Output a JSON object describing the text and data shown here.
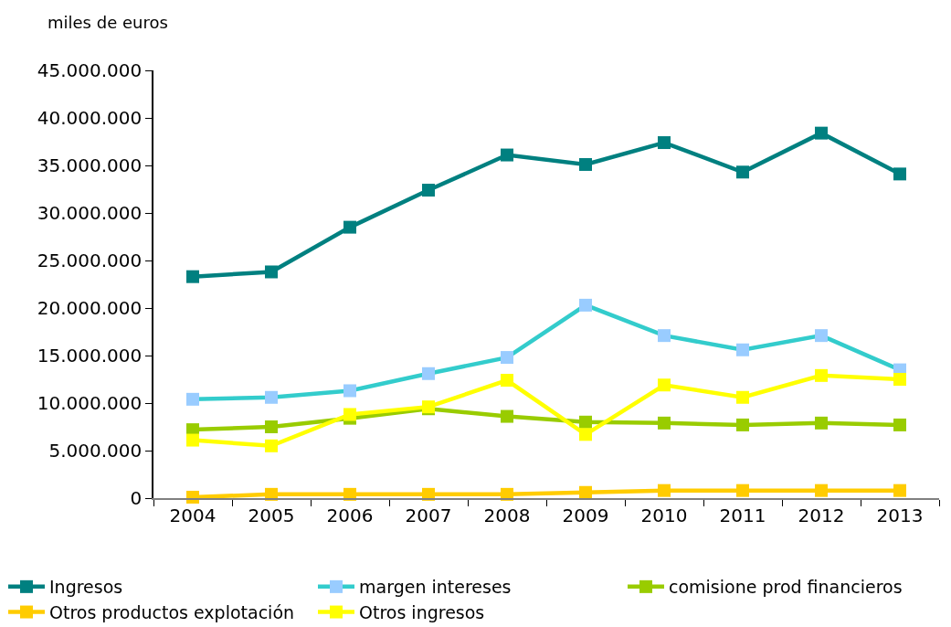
{
  "chart_data": {
    "type": "line",
    "ylabel": "miles de euros",
    "categories": [
      "2004",
      "2005",
      "2006",
      "2007",
      "2008",
      "2009",
      "2010",
      "2011",
      "2012",
      "2013"
    ],
    "series": [
      {
        "name": "Ingresos",
        "color": "#008080",
        "values": [
          23300000,
          23800000,
          28500000,
          32400000,
          36100000,
          35100000,
          37400000,
          34300000,
          38400000,
          34100000
        ]
      },
      {
        "name": "margen intereses",
        "color": "#33cccc",
        "colors": [
          "#99ccff",
          "#99ccff",
          "#99ccff",
          "#99ccff",
          "#99ccff",
          "#99ccff",
          "#99ccff",
          "#99ccff",
          "#99ccff",
          "#99ccff"
        ],
        "values": [
          10400000,
          10600000,
          11300000,
          13100000,
          14800000,
          20300000,
          17100000,
          15600000,
          17100000,
          13500000
        ]
      },
      {
        "name": "comisione prod financieros",
        "color": "#99cc00",
        "values": [
          7200000,
          7500000,
          8400000,
          9400000,
          8600000,
          8000000,
          7900000,
          7700000,
          7900000,
          7700000
        ]
      },
      {
        "name": "Otros productos explotación",
        "color": "#ffcc00",
        "values": [
          100000,
          400000,
          400000,
          400000,
          400000,
          600000,
          800000,
          800000,
          800000,
          800000
        ]
      },
      {
        "name": "Otros ingresos",
        "color": "#ffff00",
        "values": [
          6100000,
          5500000,
          8800000,
          9600000,
          12400000,
          6700000,
          11900000,
          10600000,
          12900000,
          12500000
        ]
      }
    ],
    "ylim": [
      0,
      45000000
    ],
    "yticks": [
      0,
      {
        "value": 5000000,
        "label": "5.000.000"
      },
      {
        "value": 10000000,
        "label": "10.000.000"
      },
      {
        "value": 15000000,
        "label": "15.000.000"
      },
      {
        "value": 20000000,
        "label": "20.000.000"
      },
      {
        "value": 25000000,
        "label": "25.000.000"
      },
      {
        "value": 30000000,
        "label": "30.000.000"
      },
      {
        "value": 35000000,
        "label": "35.000.000"
      },
      {
        "value": 40000000,
        "label": "40.000.000"
      },
      {
        "value": 45000000,
        "label": "45.000.000"
      }
    ],
    "grid": false,
    "legend": "bottom",
    "marker": "square",
    "line_style": "solid"
  }
}
